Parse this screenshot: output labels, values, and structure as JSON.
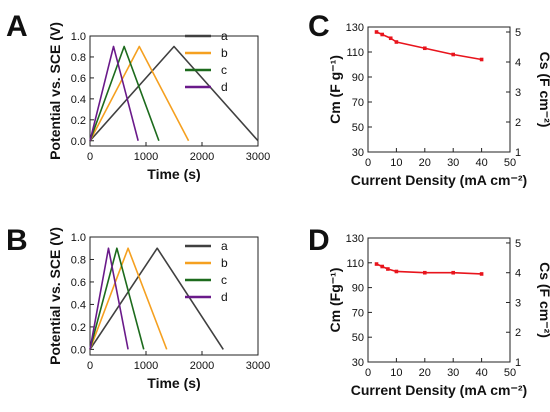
{
  "chart_data": [
    {
      "panel": "A",
      "type": "line",
      "xlabel": "Time (s)",
      "ylabel": "Potential vs. SCE (V)",
      "xlim": [
        0,
        3000
      ],
      "ylim": [
        -0.05,
        1.0
      ],
      "xticks": [
        0,
        1000,
        2000,
        3000
      ],
      "yticks": [
        0.0,
        0.2,
        0.4,
        0.6,
        0.8,
        1.0
      ],
      "tick_decimals_y": 1,
      "legend_position": "top-right",
      "series": [
        {
          "name": "a",
          "color": "#404040",
          "x": [
            0,
            1500,
            3000
          ],
          "y": [
            0.0,
            0.9,
            0.0
          ]
        },
        {
          "name": "b",
          "color": "#f5a020",
          "x": [
            0,
            880,
            1760
          ],
          "y": [
            0.0,
            0.9,
            0.0
          ]
        },
        {
          "name": "c",
          "color": "#1d6b1d",
          "x": [
            0,
            610,
            1230
          ],
          "y": [
            0.0,
            0.9,
            0.0
          ]
        },
        {
          "name": "d",
          "color": "#6a1a8a",
          "x": [
            0,
            420,
            860
          ],
          "y": [
            0.0,
            0.9,
            0.0
          ]
        }
      ]
    },
    {
      "panel": "B",
      "type": "line",
      "xlabel": "Time (s)",
      "ylabel": "Potential vs. SCE (V)",
      "xlim": [
        0,
        3000
      ],
      "ylim": [
        -0.05,
        1.0
      ],
      "xticks": [
        0,
        1000,
        2000,
        3000
      ],
      "yticks": [
        0.0,
        0.2,
        0.4,
        0.6,
        0.8,
        1.0
      ],
      "tick_decimals_y": 1,
      "legend_position": "top-right",
      "series": [
        {
          "name": "a",
          "color": "#404040",
          "x": [
            0,
            1200,
            2380
          ],
          "y": [
            0.0,
            0.9,
            0.0
          ]
        },
        {
          "name": "b",
          "color": "#f5a020",
          "x": [
            0,
            680,
            1370
          ],
          "y": [
            0.0,
            0.9,
            0.0
          ]
        },
        {
          "name": "c",
          "color": "#1d6b1d",
          "x": [
            0,
            480,
            960
          ],
          "y": [
            0.0,
            0.9,
            0.0
          ]
        },
        {
          "name": "d",
          "color": "#6a1a8a",
          "x": [
            0,
            330,
            680
          ],
          "y": [
            0.0,
            0.9,
            0.0
          ]
        }
      ]
    },
    {
      "panel": "C",
      "type": "line",
      "xlabel": "Current Density (mA cm⁻²)",
      "ylabel": "Cm (F g⁻¹)",
      "ylabel_right": "Cs (F cm⁻²)",
      "xlim": [
        0,
        50
      ],
      "ylim": [
        30,
        130
      ],
      "ylim_right": [
        1,
        5
      ],
      "xticks": [
        0,
        10,
        20,
        30,
        40,
        50
      ],
      "yticks": [
        30,
        50,
        70,
        90,
        110,
        130
      ],
      "yticks_right": [
        1,
        2,
        3,
        4,
        5
      ],
      "color": "#e8141c",
      "series": [
        {
          "x": [
            3,
            5,
            8,
            10,
            20,
            30,
            40
          ],
          "y": [
            126,
            124,
            121,
            118,
            113,
            108,
            104
          ]
        }
      ]
    },
    {
      "panel": "D",
      "type": "line",
      "xlabel": "Current Density (mA cm⁻²)",
      "ylabel": "Cm (Fg⁻¹)",
      "ylabel_right": "Cs (F cm⁻²)",
      "xlim": [
        0,
        50
      ],
      "ylim": [
        30,
        130
      ],
      "ylim_right": [
        1,
        5
      ],
      "xticks": [
        0,
        10,
        20,
        30,
        40,
        50
      ],
      "yticks": [
        30,
        50,
        70,
        90,
        110,
        130
      ],
      "yticks_right": [
        1,
        2,
        3,
        4,
        5
      ],
      "color": "#e8141c",
      "series": [
        {
          "x": [
            3,
            5,
            7,
            10,
            20,
            30,
            40
          ],
          "y": [
            109,
            107,
            105,
            103,
            102,
            102,
            101
          ]
        }
      ]
    }
  ]
}
